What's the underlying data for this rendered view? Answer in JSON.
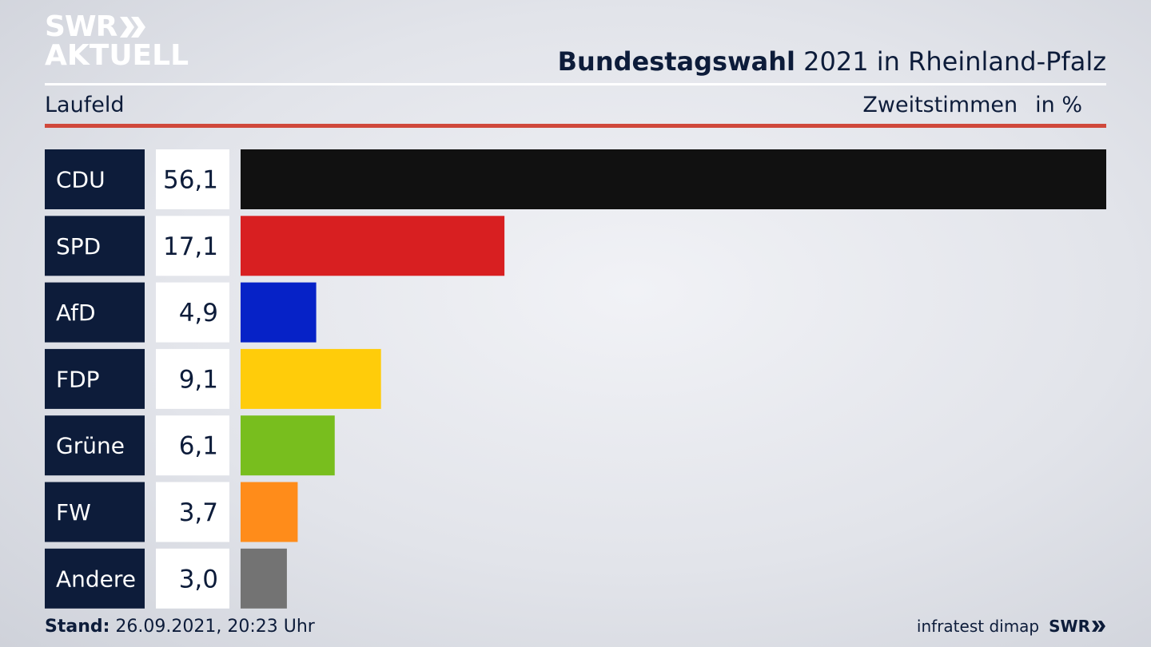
{
  "brand": {
    "line1": "SWR",
    "line2": "AKTUELL",
    "footer_logo": "SWR",
    "logo_icon": "double-chevron-icon"
  },
  "header": {
    "title_bold": "Bundestagswahl",
    "title_rest": " 2021 in Rheinland-Pfalz"
  },
  "subheader": {
    "left": "Laufeld",
    "right_label": "Zweitstimmen",
    "right_unit": "in %"
  },
  "footer": {
    "stand_label": "Stand:",
    "stand_value": " 26.09.2021, 20:23 Uhr",
    "source": "infratest dimap"
  },
  "chart_data": {
    "type": "bar",
    "orientation": "horizontal",
    "categories": [
      "CDU",
      "SPD",
      "AfD",
      "FDP",
      "Grüne",
      "FW",
      "Andere"
    ],
    "values": [
      56.1,
      17.1,
      4.9,
      9.1,
      6.1,
      3.7,
      3.0
    ],
    "value_labels": [
      "56,1",
      "17,1",
      "4,9",
      "9,1",
      "6,1",
      "3,7",
      "3,0"
    ],
    "colors": [
      "#111111",
      "#d81f21",
      "#0622c7",
      "#ffcc0a",
      "#78be1e",
      "#ff8c1a",
      "#737373"
    ],
    "xlim": [
      0,
      56.1
    ],
    "title": "Bundestagswahl 2021 in Rheinland-Pfalz",
    "grid": false
  }
}
